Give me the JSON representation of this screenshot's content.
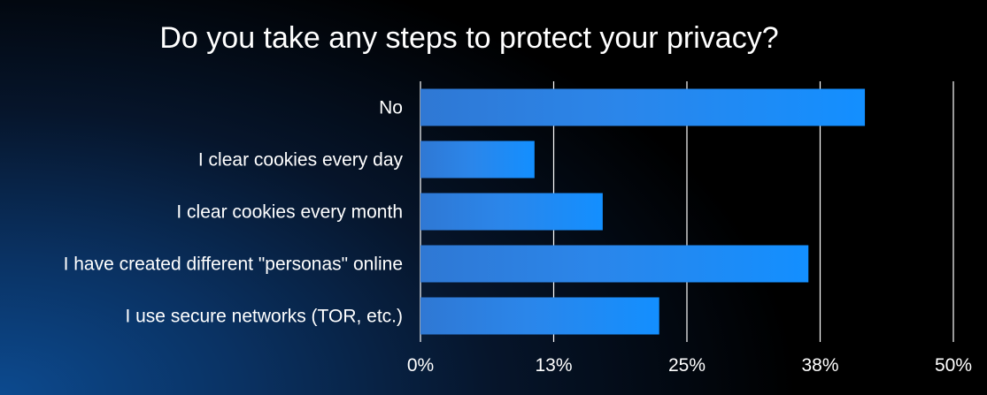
{
  "title": "Do you take any steps to protect your privacy?",
  "chart_data": {
    "type": "bar",
    "orientation": "horizontal",
    "title": "Do you take any steps to protect your privacy?",
    "categories": [
      "No",
      "I clear cookies every day",
      "I clear cookies every month",
      "I have created different \"personas\" online",
      "I use secure networks (TOR, etc.)"
    ],
    "values": [
      41.7,
      10.7,
      17.1,
      36.4,
      22.4
    ],
    "xlim": [
      0,
      50
    ],
    "ticks": [
      0,
      12.5,
      25,
      37.5,
      50
    ],
    "tick_labels": [
      "0%",
      "13%",
      "25%",
      "38%",
      "50%"
    ],
    "grid": "vertical",
    "bar_color": "#1a8cff"
  }
}
